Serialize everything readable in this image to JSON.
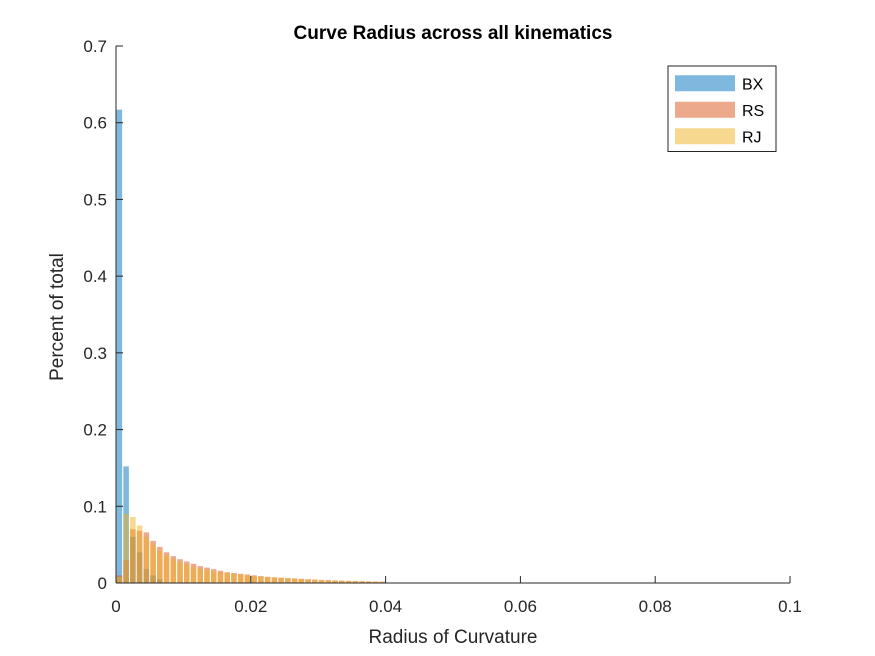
{
  "chart_data": {
    "type": "bar",
    "title": "Curve Radius across all kinematics",
    "xlabel": "Radius of Curvature",
    "ylabel": "Percent of total",
    "xlim": [
      0,
      0.1
    ],
    "ylim": [
      0,
      0.7
    ],
    "xticks": [
      0,
      0.02,
      0.04,
      0.06,
      0.08,
      0.1
    ],
    "xtick_labels": [
      "0",
      "0.02",
      "0.04",
      "0.06",
      "0.08",
      "0.1"
    ],
    "yticks": [
      0,
      0.1,
      0.2,
      0.3,
      0.4,
      0.5,
      0.6,
      0.7
    ],
    "ytick_labels": [
      "0",
      "0.1",
      "0.2",
      "0.3",
      "0.4",
      "0.5",
      "0.6",
      "0.7"
    ],
    "bin_width": 0.001,
    "legend_position": "top-right",
    "grid": false,
    "series": [
      {
        "name": "BX",
        "color": "#0072BD",
        "opacity": 0.5,
        "bin_centers": [
          0.0005,
          0.0015,
          0.0025,
          0.0035,
          0.0045,
          0.0055,
          0.0065
        ],
        "values": [
          0.617,
          0.152,
          0.06,
          0.04,
          0.018,
          0.01,
          0.005
        ]
      },
      {
        "name": "RS",
        "color": "#D95319",
        "opacity": 0.5,
        "bin_centers": [
          0.0005,
          0.0015,
          0.0025,
          0.0035,
          0.0045,
          0.0055,
          0.0065,
          0.0075,
          0.0085,
          0.0095,
          0.0105,
          0.0115,
          0.0125,
          0.0135,
          0.0145,
          0.0155,
          0.0165,
          0.0175,
          0.0185,
          0.0195,
          0.0205,
          0.0215,
          0.0225,
          0.0235,
          0.0245,
          0.0255,
          0.0265,
          0.0275,
          0.0285,
          0.0295,
          0.0305,
          0.0315,
          0.0325,
          0.0335,
          0.0345,
          0.0355,
          0.0365,
          0.0375,
          0.0385,
          0.0395
        ],
        "values": [
          0.01,
          0.03,
          0.07,
          0.068,
          0.066,
          0.055,
          0.047,
          0.04,
          0.035,
          0.031,
          0.028,
          0.025,
          0.022,
          0.02,
          0.018,
          0.016,
          0.014,
          0.013,
          0.012,
          0.011,
          0.01,
          0.009,
          0.008,
          0.0075,
          0.007,
          0.0065,
          0.006,
          0.0055,
          0.005,
          0.0045,
          0.004,
          0.0037,
          0.0034,
          0.0031,
          0.0028,
          0.0025,
          0.0023,
          0.0021,
          0.0019,
          0.0017
        ]
      },
      {
        "name": "RJ",
        "color": "#EDB120",
        "opacity": 0.5,
        "bin_centers": [
          0.0005,
          0.0015,
          0.0025,
          0.0035,
          0.0045,
          0.0055,
          0.0065,
          0.0075,
          0.0085,
          0.0095,
          0.0105,
          0.0115,
          0.0125,
          0.0135,
          0.0145,
          0.0155,
          0.0165,
          0.0175,
          0.0185,
          0.0195,
          0.0205,
          0.0215,
          0.0225,
          0.0235,
          0.0245,
          0.0255,
          0.0265,
          0.0275,
          0.0285,
          0.0295,
          0.0305,
          0.0315,
          0.0325,
          0.0335,
          0.0345,
          0.0355,
          0.0365,
          0.0375,
          0.0385,
          0.0395
        ],
        "values": [
          0.008,
          0.09,
          0.086,
          0.075,
          0.06,
          0.05,
          0.042,
          0.036,
          0.031,
          0.027,
          0.024,
          0.021,
          0.019,
          0.017,
          0.015,
          0.014,
          0.013,
          0.012,
          0.011,
          0.01,
          0.009,
          0.0085,
          0.008,
          0.0072,
          0.0065,
          0.006,
          0.0055,
          0.005,
          0.0046,
          0.0042,
          0.0038,
          0.0035,
          0.0032,
          0.0029,
          0.0027,
          0.0025,
          0.0023,
          0.0021,
          0.0019,
          0.0017
        ]
      }
    ]
  }
}
